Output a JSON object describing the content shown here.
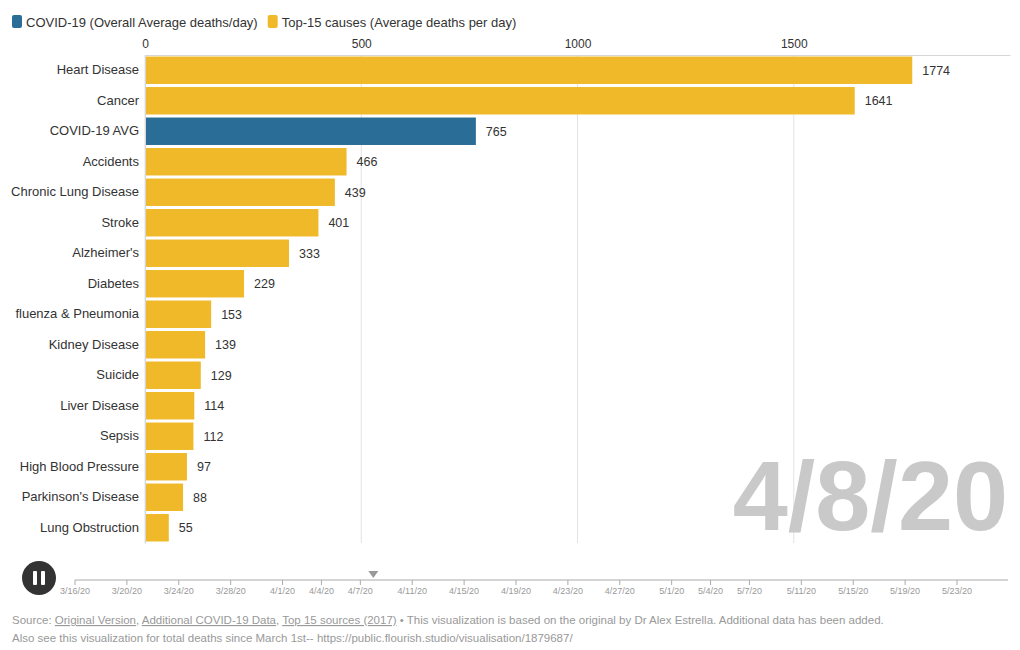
{
  "chart_data": {
    "type": "bar",
    "orientation": "horizontal",
    "categories": [
      "Heart Disease",
      "Cancer",
      "COVID-19 AVG",
      "Accidents",
      "Chronic Lung Disease",
      "Stroke",
      "Alzheimer's",
      "Diabetes",
      "fluenza & Pneumonia",
      "Kidney Disease",
      "Suicide",
      "Liver Disease",
      "Sepsis",
      "High Blood Pressure",
      "Parkinson's Disease",
      "Lung Obstruction"
    ],
    "series": [
      {
        "name": "COVID-19 (Overall Average deaths/day)",
        "color": "#2a6d96",
        "values": [
          null,
          null,
          765,
          null,
          null,
          null,
          null,
          null,
          null,
          null,
          null,
          null,
          null,
          null,
          null,
          null
        ]
      },
      {
        "name": "Top-15 causes (Average deaths per day)",
        "color": "#f0b929",
        "values": [
          1774,
          1641,
          null,
          466,
          439,
          401,
          333,
          229,
          153,
          139,
          129,
          114,
          112,
          97,
          88,
          55
        ]
      }
    ],
    "xlim": [
      0,
      2000
    ],
    "xticks": [
      0,
      500,
      1000,
      1500
    ],
    "grid": true,
    "data_labels": true,
    "legend": "top-left"
  },
  "timeline": {
    "dates": [
      "3/16/20",
      "3/20/20",
      "3/24/20",
      "3/28/20",
      "4/1/20",
      "4/4/20",
      "4/7/20",
      "4/11/20",
      "4/15/20",
      "4/19/20",
      "4/23/20",
      "4/27/20",
      "5/1/20",
      "5/4/20",
      "5/7/20",
      "5/11/20",
      "5/15/20",
      "5/19/20",
      "5/23/20"
    ],
    "current": "4/8/20"
  },
  "footer": [
    [
      {
        "text": "Source: "
      },
      {
        "text": "Original Version",
        "link": true
      },
      {
        "text": ", "
      },
      {
        "text": "Additional COVID-19 Data",
        "link": true
      },
      {
        "text": ", "
      },
      {
        "text": "Top 15 sources (2017)",
        "link": true
      },
      {
        "text": " • This visualization is based on the original by Dr Alex Estrella. Additional data has been added."
      }
    ],
    [
      {
        "text": "Also see this visualization for total deaths since March 1st-- https://public.flourish.studio/visualisation/1879687/"
      }
    ]
  ]
}
